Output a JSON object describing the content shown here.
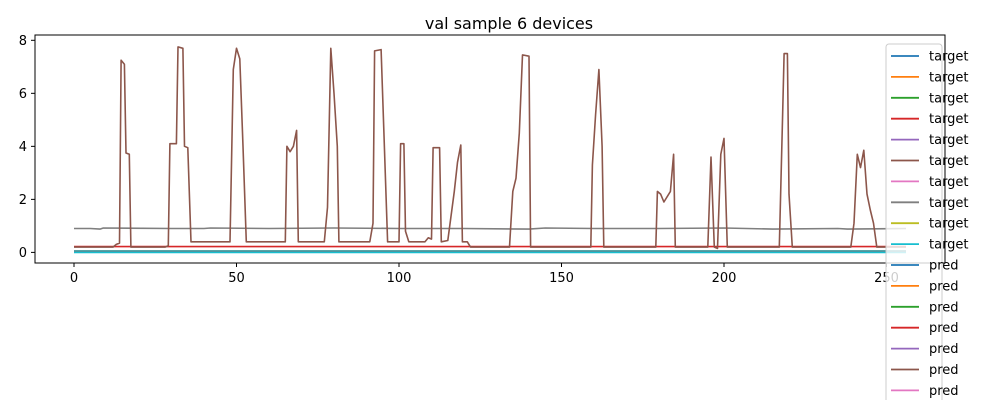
{
  "chart_data": {
    "type": "line",
    "title": "val sample 6 devices",
    "xlabel": "",
    "ylabel": "",
    "xlim": [
      -12,
      268
    ],
    "ylim": [
      -0.4,
      8.2
    ],
    "xticks": [
      0,
      50,
      100,
      150,
      200,
      250
    ],
    "yticks": [
      0,
      2,
      4,
      6,
      8
    ],
    "grid": false,
    "legend": {
      "placement": "upper right (overflowing below plot)",
      "entries": [
        {
          "label": "target",
          "color": "#1f77b4"
        },
        {
          "label": "target",
          "color": "#ff7f0e"
        },
        {
          "label": "target",
          "color": "#2ca02c"
        },
        {
          "label": "target",
          "color": "#d62728"
        },
        {
          "label": "target",
          "color": "#9467bd"
        },
        {
          "label": "target",
          "color": "#8c564b"
        },
        {
          "label": "target",
          "color": "#e377c2"
        },
        {
          "label": "target",
          "color": "#7f7f7f"
        },
        {
          "label": "target",
          "color": "#bcbd22"
        },
        {
          "label": "target",
          "color": "#17becf"
        },
        {
          "label": "pred",
          "color": "#1f77b4"
        },
        {
          "label": "pred",
          "color": "#ff7f0e"
        },
        {
          "label": "pred",
          "color": "#2ca02c"
        },
        {
          "label": "pred",
          "color": "#d62728"
        },
        {
          "label": "pred",
          "color": "#9467bd"
        },
        {
          "label": "pred",
          "color": "#8c564b"
        },
        {
          "label": "pred",
          "color": "#e377c2"
        }
      ]
    },
    "series": [
      {
        "color": "#1f77b4",
        "points": [
          [
            0,
            0.05
          ],
          [
            256,
            0.05
          ]
        ]
      },
      {
        "color": "#ff7f0e",
        "points": [
          [
            0,
            0.02
          ],
          [
            256,
            0.02
          ]
        ]
      },
      {
        "color": "#2ca02c",
        "points": [
          [
            0,
            0.03
          ],
          [
            256,
            0.03
          ]
        ]
      },
      {
        "color": "#d62728",
        "points": [
          [
            0,
            0.22
          ],
          [
            256,
            0.22
          ]
        ]
      },
      {
        "color": "#9467bd",
        "points": [
          [
            0,
            0.01
          ],
          [
            256,
            0.01
          ]
        ]
      },
      {
        "color": "#17becf",
        "points": [
          [
            0,
            0.0
          ],
          [
            256,
            0.0
          ]
        ]
      },
      {
        "color": "#7f7f7f",
        "points": [
          [
            0,
            0.9
          ],
          [
            5,
            0.9
          ],
          [
            8,
            0.88
          ],
          [
            9,
            0.92
          ],
          [
            30,
            0.9
          ],
          [
            40,
            0.9
          ],
          [
            42,
            0.92
          ],
          [
            60,
            0.9
          ],
          [
            80,
            0.92
          ],
          [
            100,
            0.9
          ],
          [
            120,
            0.9
          ],
          [
            140,
            0.88
          ],
          [
            145,
            0.92
          ],
          [
            160,
            0.9
          ],
          [
            180,
            0.9
          ],
          [
            200,
            0.92
          ],
          [
            215,
            0.88
          ],
          [
            235,
            0.9
          ],
          [
            238,
            0.88
          ],
          [
            256,
            0.9
          ]
        ]
      },
      {
        "color": "#8c564b",
        "points": [
          [
            0,
            0.2
          ],
          [
            12,
            0.2
          ],
          [
            13,
            0.3
          ],
          [
            14,
            0.35
          ],
          [
            14.5,
            7.25
          ],
          [
            15.5,
            7.1
          ],
          [
            16,
            3.75
          ],
          [
            17,
            3.7
          ],
          [
            17.5,
            0.2
          ],
          [
            28,
            0.2
          ],
          [
            29,
            0.25
          ],
          [
            29.5,
            4.1
          ],
          [
            31.5,
            4.1
          ],
          [
            32,
            7.75
          ],
          [
            33.5,
            7.7
          ],
          [
            34,
            4.0
          ],
          [
            35,
            3.95
          ],
          [
            36,
            0.4
          ],
          [
            48,
            0.4
          ],
          [
            49,
            6.9
          ],
          [
            50,
            7.7
          ],
          [
            51,
            7.3
          ],
          [
            52,
            4.0
          ],
          [
            53,
            0.4
          ],
          [
            65,
            0.4
          ],
          [
            65.5,
            4.0
          ],
          [
            66.5,
            3.8
          ],
          [
            67.5,
            4.0
          ],
          [
            68.5,
            4.6
          ],
          [
            69,
            0.4
          ],
          [
            77,
            0.4
          ],
          [
            78,
            1.7
          ],
          [
            79,
            7.7
          ],
          [
            80,
            6.0
          ],
          [
            81,
            4.0
          ],
          [
            81.5,
            0.4
          ],
          [
            91,
            0.4
          ],
          [
            92,
            1.1
          ],
          [
            92.5,
            7.6
          ],
          [
            94.5,
            7.65
          ],
          [
            96.5,
            0.4
          ],
          [
            100,
            0.4
          ],
          [
            100.5,
            4.1
          ],
          [
            101.5,
            4.1
          ],
          [
            102,
            0.8
          ],
          [
            103,
            0.4
          ],
          [
            108,
            0.4
          ],
          [
            109,
            0.55
          ],
          [
            110,
            0.5
          ],
          [
            110.5,
            3.95
          ],
          [
            112.5,
            3.95
          ],
          [
            113,
            0.4
          ],
          [
            115,
            0.45
          ],
          [
            117,
            2.3
          ],
          [
            118,
            3.4
          ],
          [
            119,
            4.05
          ],
          [
            119.5,
            0.4
          ],
          [
            121,
            0.4
          ],
          [
            122,
            0.2
          ],
          [
            134,
            0.2
          ],
          [
            135,
            2.3
          ],
          [
            136,
            2.8
          ],
          [
            137,
            4.5
          ],
          [
            138,
            7.45
          ],
          [
            140,
            7.4
          ],
          [
            140.5,
            0.2
          ],
          [
            159,
            0.2
          ],
          [
            159.5,
            3.3
          ],
          [
            160.5,
            5.2
          ],
          [
            161.5,
            6.9
          ],
          [
            162.5,
            4.0
          ],
          [
            163,
            0.2
          ],
          [
            179,
            0.2
          ],
          [
            179.5,
            2.3
          ],
          [
            180.5,
            2.2
          ],
          [
            181.5,
            1.9
          ],
          [
            183.5,
            2.3
          ],
          [
            184.5,
            3.7
          ],
          [
            185,
            0.2
          ],
          [
            195,
            0.2
          ],
          [
            196,
            3.6
          ],
          [
            197,
            0.2
          ],
          [
            198,
            0.15
          ],
          [
            199,
            3.7
          ],
          [
            200,
            4.3
          ],
          [
            201,
            0.2
          ],
          [
            217,
            0.2
          ],
          [
            218,
            5.0
          ],
          [
            218.5,
            7.5
          ],
          [
            219.5,
            7.5
          ],
          [
            220,
            2.2
          ],
          [
            221,
            0.2
          ],
          [
            239,
            0.2
          ],
          [
            240,
            1.1
          ],
          [
            241,
            3.7
          ],
          [
            242,
            3.2
          ],
          [
            243,
            3.85
          ],
          [
            244,
            2.2
          ],
          [
            245,
            1.6
          ],
          [
            246,
            1.1
          ],
          [
            247,
            0.2
          ],
          [
            256,
            0.2
          ]
        ]
      }
    ]
  }
}
